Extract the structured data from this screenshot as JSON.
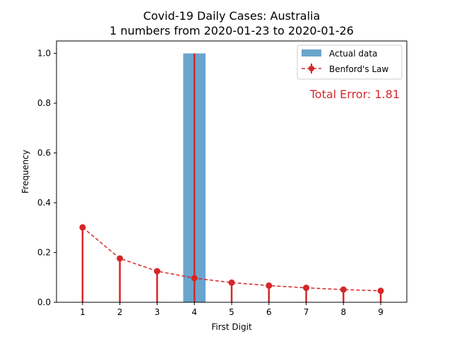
{
  "chart_data": {
    "type": "bar",
    "title": "Covid-19 Daily Cases: Australia",
    "subtitle": "1 numbers from 2020-01-23 to 2020-01-26",
    "xlabel": "First Digit",
    "ylabel": "Frequency",
    "categories": [
      "1",
      "2",
      "3",
      "4",
      "5",
      "6",
      "7",
      "8",
      "9"
    ],
    "x": [
      1,
      2,
      3,
      4,
      5,
      6,
      7,
      8,
      9
    ],
    "xlim": [
      0.3,
      9.7
    ],
    "ylim": [
      0,
      1.05
    ],
    "yticks": [
      0.0,
      0.2,
      0.4,
      0.6,
      0.8,
      1.0
    ],
    "ytick_labels": [
      "0.0",
      "0.2",
      "0.4",
      "0.6",
      "0.8",
      "1.0"
    ],
    "grid": false,
    "legend_position": "top-right",
    "series": [
      {
        "name": "Actual data",
        "kind": "bar",
        "color": "#6aa5cd",
        "values": [
          0,
          0,
          0,
          1.0,
          0,
          0,
          0,
          0,
          0
        ]
      },
      {
        "name": "Benford's Law",
        "kind": "line-dashed-markers",
        "color": "#d62728",
        "values": [
          0.301,
          0.176,
          0.125,
          0.097,
          0.079,
          0.067,
          0.058,
          0.051,
          0.046
        ]
      }
    ],
    "annotation": {
      "text": "Total Error: 1.81",
      "color": "#d62728",
      "position": "top-right"
    }
  }
}
